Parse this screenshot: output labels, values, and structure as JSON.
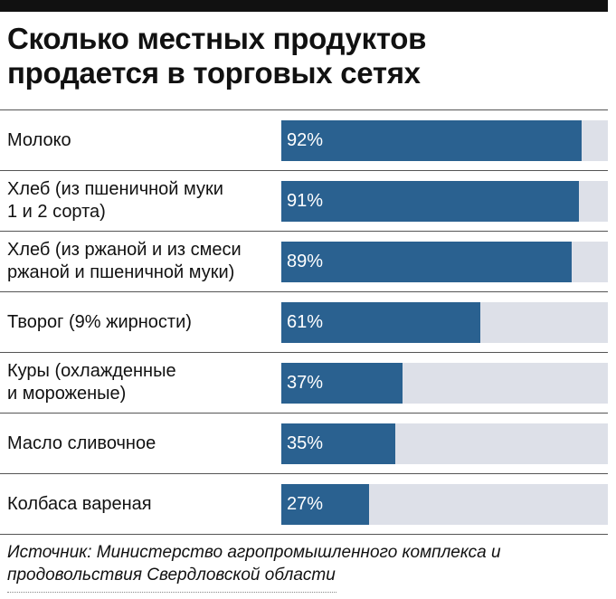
{
  "title": {
    "line1": "Сколько местных продуктов",
    "line2": "продается в торговых сетях"
  },
  "chart_data": {
    "type": "bar",
    "orientation": "horizontal",
    "title": "Сколько местных продуктов продается в торговых сетях",
    "categories": [
      "Молоко",
      "Хлеб (из пшеничной муки 1 и 2 сорта)",
      "Хлеб (из ржаной и из смеси ржаной и пшеничной муки)",
      "Творог (9% жирности)",
      "Куры (охлажденные и мороженые)",
      "Масло сливочное",
      "Колбаса вареная"
    ],
    "label_lines": [
      [
        "Молоко"
      ],
      [
        "Хлеб (из пшеничной муки",
        "1 и 2 сорта)"
      ],
      [
        "Хлеб (из ржаной и из смеси",
        "ржаной и пшеничной муки)"
      ],
      [
        "Творог (9% жирности)"
      ],
      [
        "Куры (охлажденные",
        "и мороженые)"
      ],
      [
        "Масло сливочное"
      ],
      [
        "Колбаса вареная"
      ]
    ],
    "values": [
      92,
      91,
      89,
      61,
      37,
      35,
      27
    ],
    "value_labels": [
      "92%",
      "91%",
      "89%",
      "61%",
      "37%",
      "35%",
      "27%"
    ],
    "xlim": [
      0,
      100
    ],
    "unit": "%",
    "colors": {
      "bar": "#2a6190",
      "track": "#dde0e8",
      "value_text": "#ffffff"
    }
  },
  "source": "Источник: Министерство агропромышленного комплекса и продовольствия Свердловской области"
}
